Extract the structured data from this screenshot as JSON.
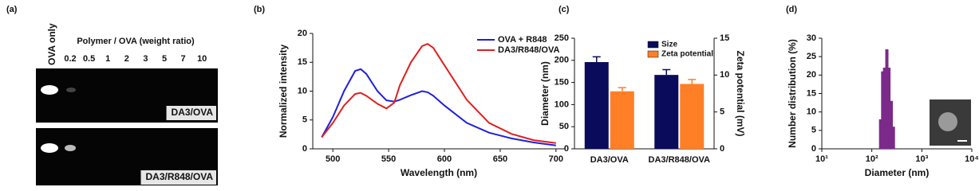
{
  "chart_data": [
    {
      "type": "gel",
      "panel_label": "(a)",
      "control_label": "OVA only",
      "lane_title": "Polymer / OVA (weight ratio)",
      "lanes": [
        "0.2",
        "0.5",
        "1",
        "2",
        "3",
        "5",
        "7",
        "10"
      ],
      "gels": [
        "DA3/OVA",
        "DA3/R848/OVA"
      ]
    },
    {
      "type": "line",
      "panel_label": "(b)",
      "xlabel": "Wavelength (nm)",
      "ylabel": "Normalized intensity",
      "x": [
        490,
        500,
        510,
        520,
        525,
        530,
        540,
        548,
        555,
        560,
        570,
        580,
        585,
        590,
        600,
        620,
        640,
        660,
        680,
        700
      ],
      "series": [
        {
          "name": "OVA + R848",
          "color": "#1f1fe0",
          "values": [
            2,
            5.5,
            10,
            13.5,
            13.8,
            13,
            10,
            8.4,
            8.2,
            8.5,
            9.3,
            10,
            9.8,
            9.2,
            7.5,
            4.5,
            2.8,
            1.8,
            1.1,
            0.6
          ]
        },
        {
          "name": "DA3/R848/OVA",
          "color": "#e01f1f",
          "values": [
            2,
            4.5,
            7.5,
            9.5,
            9.7,
            9.2,
            7.8,
            7,
            8,
            11,
            15,
            17.8,
            18.2,
            17.5,
            14.5,
            8.5,
            4.5,
            2.6,
            1.5,
            1
          ]
        }
      ],
      "xlim": [
        482,
        708
      ],
      "xticks": [
        500,
        550,
        600,
        650,
        700
      ],
      "ylim": [
        0,
        20
      ],
      "yticks": [
        0,
        5,
        10,
        15,
        20
      ],
      "legend": "upper right"
    },
    {
      "type": "bar",
      "panel_label": "(c)",
      "ylabel": "Diameter (nm)",
      "y2label": "Zeta potential (mV)",
      "categories": [
        "DA3/OVA",
        "DA3/R848/OVA"
      ],
      "series": [
        {
          "name": "Size",
          "color": "#0b0b5c",
          "values": [
            196,
            167
          ],
          "errors": [
            12,
            12
          ]
        },
        {
          "name": "Zeta potential",
          "color": "#ff7f27",
          "values": [
            7.8,
            8.8
          ],
          "errors": [
            0.5,
            0.6
          ],
          "axis": "y2"
        }
      ],
      "ylim": [
        0,
        250
      ],
      "yticks": [
        0,
        50,
        100,
        150,
        200,
        250
      ],
      "y2lim": [
        0,
        15
      ],
      "y2ticks": [
        0,
        5,
        10,
        15
      ],
      "legend": "upper right"
    },
    {
      "type": "bar",
      "panel_label": "(d)",
      "xlabel": "Diameter (nm)",
      "ylabel": "Number distribution (%)",
      "x": [
        150,
        165,
        180,
        200,
        220,
        245,
        270
      ],
      "values": [
        8,
        21,
        22,
        27,
        22,
        13,
        6
      ],
      "color": "#7b2a8a",
      "xscale": "log",
      "xlim": [
        10,
        10000
      ],
      "xticks": [
        {
          "value": 10,
          "label": "10¹"
        },
        {
          "value": 100,
          "label": "10²"
        },
        {
          "value": 1000,
          "label": "10³"
        },
        {
          "value": 10000,
          "label": "10⁴"
        }
      ],
      "ylim": [
        0,
        30
      ],
      "yticks": [
        0,
        5,
        10,
        15,
        20,
        25,
        30
      ]
    }
  ]
}
